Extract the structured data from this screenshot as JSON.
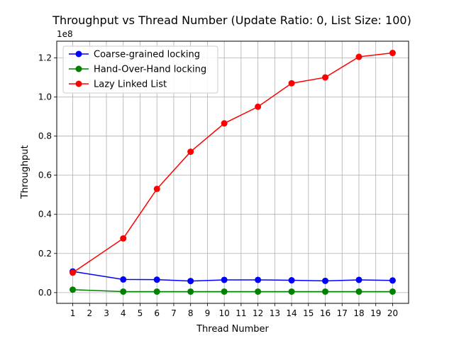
{
  "chart_data": {
    "type": "line",
    "title": "Throughput vs Thread Number (Update Ratio: 0, List Size: 100)",
    "xlabel": "Thread Number",
    "ylabel": "Throughput",
    "y_offset_label": "1e8",
    "xlim": [
      0.05,
      20.95
    ],
    "ylim": [
      -5500000,
      128500000
    ],
    "grid": true,
    "legend_position": "upper-left",
    "x_ticks": [
      1,
      2,
      3,
      4,
      5,
      6,
      7,
      8,
      9,
      10,
      11,
      12,
      13,
      14,
      15,
      16,
      17,
      18,
      19,
      20
    ],
    "x_tick_labels": [
      "1",
      "2",
      "3",
      "4",
      "5",
      "6",
      "7",
      "8",
      "9",
      "10",
      "11",
      "12",
      "13",
      "14",
      "15",
      "16",
      "17",
      "18",
      "19",
      "20"
    ],
    "y_ticks": [
      0,
      20000000,
      40000000,
      60000000,
      80000000,
      100000000,
      120000000
    ],
    "y_tick_labels": [
      "0.0",
      "0.2",
      "0.4",
      "0.6",
      "0.8",
      "1.0",
      "1.2"
    ],
    "x": [
      1,
      4,
      6,
      8,
      10,
      12,
      14,
      16,
      18,
      20
    ],
    "series": [
      {
        "name": "Coarse-grained locking",
        "color": "#0000ff",
        "values": [
          10800000,
          6700000,
          6600000,
          5900000,
          6500000,
          6500000,
          6300000,
          6000000,
          6500000,
          6200000
        ]
      },
      {
        "name": "Hand-Over-Hand locking",
        "color": "#008000",
        "values": [
          1500000,
          500000,
          500000,
          500000,
          500000,
          500000,
          500000,
          500000,
          500000,
          500000
        ]
      },
      {
        "name": "Lazy Linked List",
        "color": "#ff0000",
        "values": [
          10200000,
          27700000,
          53000000,
          72000000,
          86500000,
          95000000,
          107000000,
          110000000,
          120500000,
          122500000
        ]
      }
    ]
  }
}
